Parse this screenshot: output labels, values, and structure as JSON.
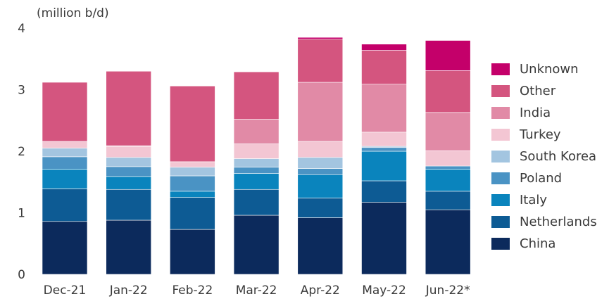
{
  "chart_data": {
    "type": "bar",
    "stacked": true,
    "title": "",
    "unit_label": "(million b/d)",
    "xlabel": "",
    "ylabel": "",
    "ylim": [
      0,
      4
    ],
    "yticks": [
      "0",
      "1",
      "2",
      "3",
      "4"
    ],
    "grid": false,
    "legend_position": "right",
    "categories": [
      "Dec-21",
      "Jan-22",
      "Feb-22",
      "Mar-22",
      "Apr-22",
      "May-22",
      "Jun-22*"
    ],
    "series": [
      {
        "name": "China",
        "color": "#0c2a5c",
        "values": [
          0.86,
          0.88,
          0.73,
          0.96,
          0.92,
          1.17,
          1.05
        ]
      },
      {
        "name": "Netherlands",
        "color": "#0d5b94",
        "values": [
          0.53,
          0.5,
          0.52,
          0.42,
          0.32,
          0.35,
          0.3
        ]
      },
      {
        "name": "Italy",
        "color": "#0a84bd",
        "values": [
          0.32,
          0.21,
          0.1,
          0.26,
          0.38,
          0.48,
          0.36
        ]
      },
      {
        "name": "Poland",
        "color": "#4a93c4",
        "values": [
          0.2,
          0.16,
          0.25,
          0.1,
          0.1,
          0.06,
          0.05
        ]
      },
      {
        "name": "South Korea",
        "color": "#a3c5e0",
        "values": [
          0.14,
          0.15,
          0.14,
          0.14,
          0.18,
          0.02,
          0.0
        ]
      },
      {
        "name": "Turkey",
        "color": "#f3c6d3",
        "values": [
          0.11,
          0.18,
          0.09,
          0.24,
          0.26,
          0.23,
          0.25
        ]
      },
      {
        "name": "India",
        "color": "#e18aa6",
        "values": [
          0.0,
          0.01,
          0.0,
          0.4,
          0.96,
          0.78,
          0.62
        ]
      },
      {
        "name": "Other",
        "color": "#d4557f",
        "values": [
          0.96,
          1.21,
          1.23,
          0.77,
          0.7,
          0.55,
          0.68
        ]
      },
      {
        "name": "Unknown",
        "color": "#c4006a",
        "values": [
          0.0,
          0.0,
          0.0,
          0.0,
          0.03,
          0.1,
          0.49
        ]
      }
    ]
  }
}
